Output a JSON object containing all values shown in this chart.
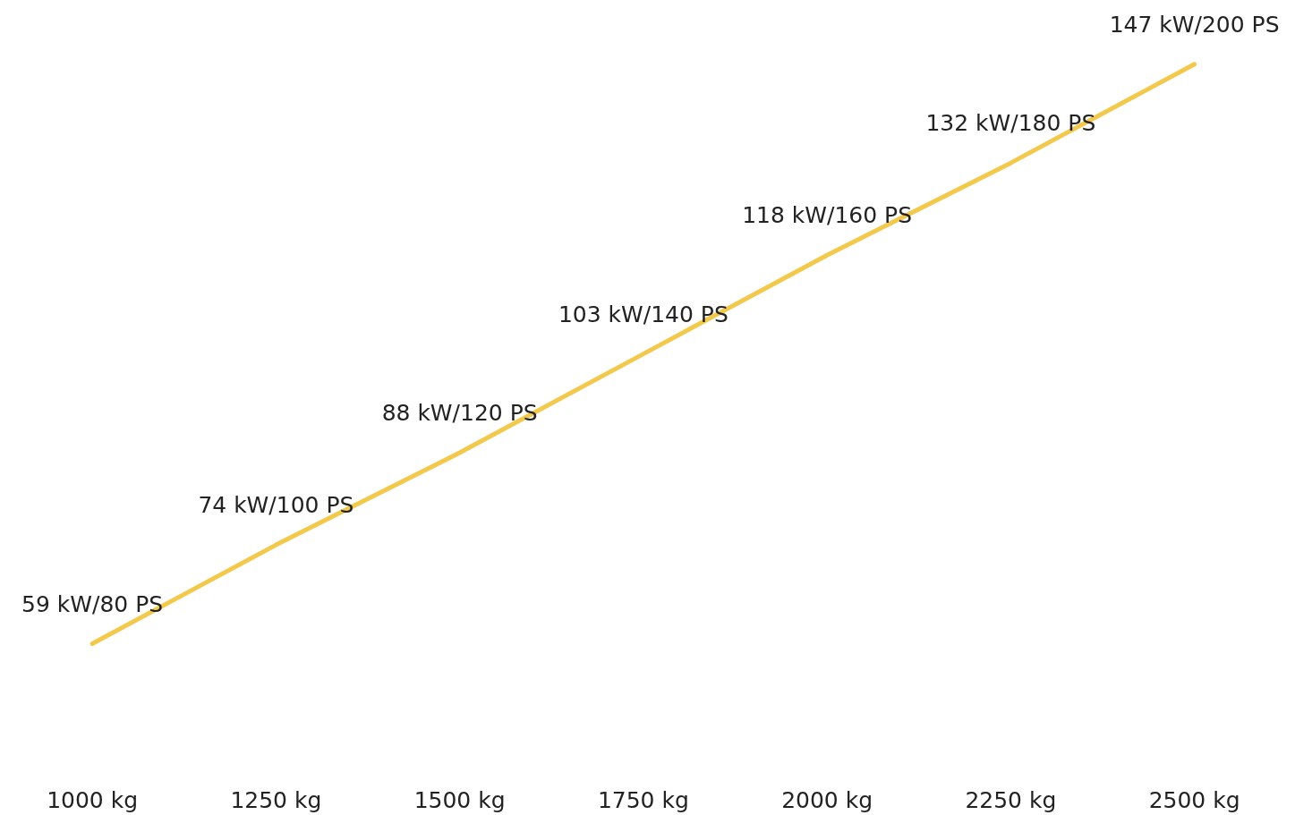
{
  "chart_data": {
    "type": "line",
    "categories": [
      "1000 kg",
      "1250 kg",
      "1500 kg",
      "1750 kg",
      "2000 kg",
      "2250 kg",
      "2500 kg"
    ],
    "series": [
      {
        "color": "#f2c94c",
        "values": [
          59,
          74,
          88,
          103,
          118,
          132,
          147
        ],
        "value_labels": [
          "59 kW/80 PS",
          "74 kW/100 PS",
          "88 kW/120 PS",
          "103 kW/140 PS",
          "118 kW/160 PS",
          "132 kW/180 PS",
          "147 kW/200 PS"
        ]
      }
    ]
  }
}
